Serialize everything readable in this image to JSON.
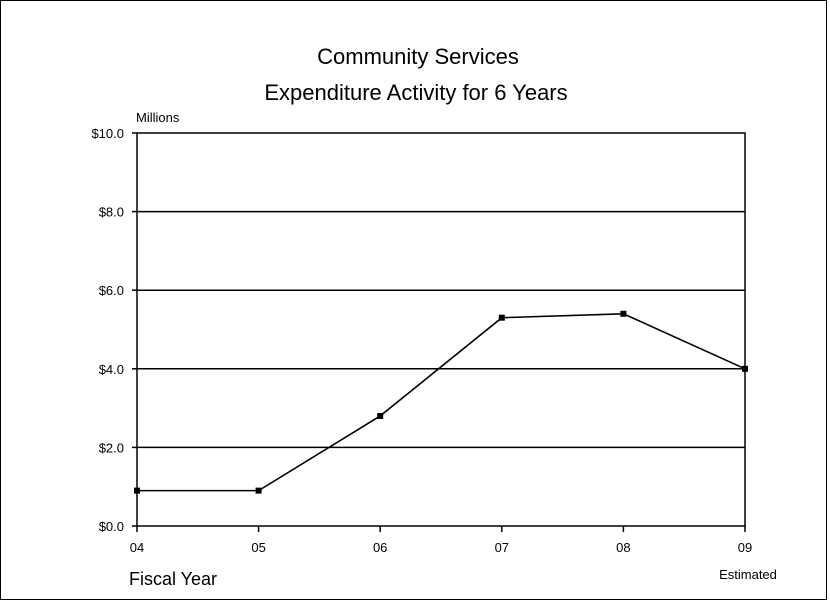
{
  "chart_data": {
    "type": "line",
    "title": "Community Services",
    "subtitle": "Expenditure Activity for 6 Years",
    "ylabel": "Millions",
    "xlabel": "Fiscal Year",
    "note": "Estimated",
    "categories": [
      "04",
      "05",
      "06",
      "07",
      "08",
      "09"
    ],
    "values": [
      0.9,
      0.9,
      2.8,
      5.3,
      5.4,
      4.0
    ],
    "ylim": [
      0,
      10
    ],
    "yticks": [
      "$0.0",
      "$2.0",
      "$4.0",
      "$6.0",
      "$8.0",
      "$10.0"
    ],
    "grid": true,
    "colors": {
      "line": "#000000",
      "grid": "#000000",
      "background": "#ffffff"
    }
  }
}
